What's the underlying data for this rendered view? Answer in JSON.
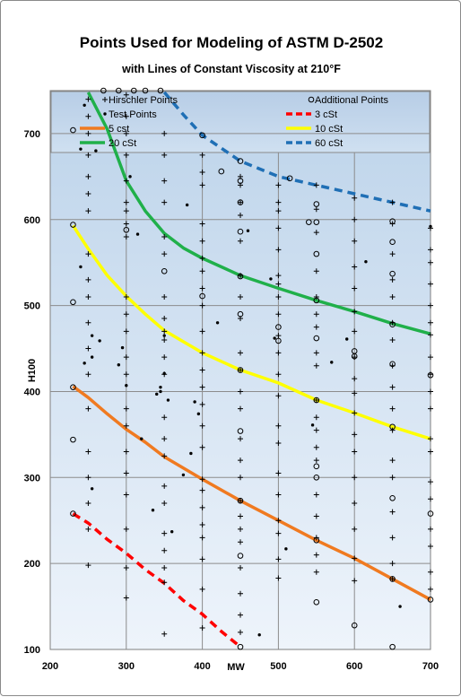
{
  "chart_data": {
    "type": "scatter",
    "title": "Points Used for Modeling of ASTM D-2502",
    "subtitle": "with Lines of Constant Viscosity at 210°F",
    "xlabel": "MW",
    "ylabel": "H100",
    "xlim": [
      200,
      700
    ],
    "ylim": [
      100,
      750
    ],
    "xticks": [
      200,
      300,
      400,
      500,
      600,
      700
    ],
    "yticks": [
      100,
      200,
      300,
      400,
      500,
      600,
      700
    ],
    "grid": true,
    "legend_position": "top",
    "legend": [
      {
        "label": "Hirschler Points",
        "marker": "plus"
      },
      {
        "label": "Additional Points",
        "marker": "circle"
      },
      {
        "label": "Test Points",
        "marker": "dot"
      },
      {
        "label": "3 cSt",
        "style": "dashed",
        "color": "#ff0000"
      },
      {
        "label": "5 cst",
        "style": "solid",
        "color": "#f07a20"
      },
      {
        "label": "10 cSt",
        "style": "solid",
        "color": "#ffff00"
      },
      {
        "label": "20 cSt",
        "style": "solid",
        "color": "#20b04a"
      },
      {
        "label": "60 cSt",
        "style": "dashed",
        "color": "#1f6fb5"
      }
    ],
    "lines": [
      {
        "name": "3 cSt",
        "color": "#ff0000",
        "dashed": true,
        "points": [
          [
            230,
            258
          ],
          [
            250,
            247
          ],
          [
            275,
            228
          ],
          [
            300,
            212
          ],
          [
            325,
            193
          ],
          [
            350,
            177
          ],
          [
            375,
            157
          ],
          [
            400,
            141
          ],
          [
            425,
            121
          ],
          [
            450,
            103
          ]
        ]
      },
      {
        "name": "5 cst",
        "color": "#f07a20",
        "dashed": false,
        "points": [
          [
            230,
            406
          ],
          [
            250,
            393
          ],
          [
            275,
            374
          ],
          [
            300,
            356
          ],
          [
            325,
            341
          ],
          [
            350,
            324
          ],
          [
            375,
            311
          ],
          [
            400,
            298
          ],
          [
            450,
            273
          ],
          [
            500,
            250
          ],
          [
            550,
            227
          ],
          [
            600,
            206
          ],
          [
            650,
            182
          ],
          [
            700,
            158
          ]
        ]
      },
      {
        "name": "10 cSt",
        "color": "#ffff00",
        "dashed": false,
        "points": [
          [
            230,
            593
          ],
          [
            250,
            566
          ],
          [
            275,
            535
          ],
          [
            300,
            511
          ],
          [
            325,
            490
          ],
          [
            350,
            471
          ],
          [
            375,
            458
          ],
          [
            400,
            445
          ],
          [
            450,
            425
          ],
          [
            500,
            410
          ],
          [
            550,
            390
          ],
          [
            600,
            375
          ],
          [
            650,
            359
          ],
          [
            700,
            345
          ]
        ]
      },
      {
        "name": "20 cSt",
        "color": "#20b04a",
        "dashed": false,
        "points": [
          [
            250,
            748
          ],
          [
            275,
            705
          ],
          [
            300,
            645
          ],
          [
            325,
            610
          ],
          [
            350,
            584
          ],
          [
            375,
            567
          ],
          [
            400,
            555
          ],
          [
            450,
            535
          ],
          [
            500,
            520
          ],
          [
            550,
            506
          ],
          [
            600,
            493
          ],
          [
            650,
            479
          ],
          [
            700,
            467
          ]
        ]
      },
      {
        "name": "60 cSt",
        "color": "#1f6fb5",
        "dashed": true,
        "points": [
          [
            350,
            748
          ],
          [
            375,
            722
          ],
          [
            400,
            698
          ],
          [
            450,
            668
          ],
          [
            500,
            650
          ],
          [
            550,
            640
          ],
          [
            600,
            630
          ],
          [
            650,
            620
          ],
          [
            700,
            610
          ]
        ]
      }
    ],
    "hirschler_points": [
      [
        250,
        740
      ],
      [
        250,
        720
      ],
      [
        250,
        700
      ],
      [
        250,
        675
      ],
      [
        250,
        650
      ],
      [
        250,
        630
      ],
      [
        250,
        610
      ],
      [
        250,
        560
      ],
      [
        250,
        530
      ],
      [
        250,
        510
      ],
      [
        250,
        480
      ],
      [
        250,
        450
      ],
      [
        250,
        420
      ],
      [
        250,
        380
      ],
      [
        250,
        330
      ],
      [
        250,
        300
      ],
      [
        250,
        270
      ],
      [
        250,
        240
      ],
      [
        250,
        198
      ],
      [
        300,
        745
      ],
      [
        300,
        720
      ],
      [
        300,
        700
      ],
      [
        300,
        675
      ],
      [
        300,
        645
      ],
      [
        300,
        620
      ],
      [
        300,
        610
      ],
      [
        300,
        595
      ],
      [
        300,
        580
      ],
      [
        300,
        510
      ],
      [
        300,
        490
      ],
      [
        300,
        470
      ],
      [
        300,
        440
      ],
      [
        300,
        420
      ],
      [
        300,
        380
      ],
      [
        300,
        360
      ],
      [
        300,
        330
      ],
      [
        300,
        305
      ],
      [
        300,
        280
      ],
      [
        300,
        240
      ],
      [
        300,
        195
      ],
      [
        300,
        160
      ],
      [
        350,
        700
      ],
      [
        350,
        675
      ],
      [
        350,
        645
      ],
      [
        350,
        620
      ],
      [
        350,
        580
      ],
      [
        350,
        560
      ],
      [
        350,
        510
      ],
      [
        350,
        485
      ],
      [
        350,
        470
      ],
      [
        350,
        460
      ],
      [
        350,
        440
      ],
      [
        350,
        420
      ],
      [
        350,
        370
      ],
      [
        350,
        345
      ],
      [
        350,
        325
      ],
      [
        350,
        290
      ],
      [
        350,
        270
      ],
      [
        350,
        235
      ],
      [
        350,
        215
      ],
      [
        350,
        195
      ],
      [
        350,
        178
      ],
      [
        350,
        118
      ],
      [
        400,
        675
      ],
      [
        400,
        655
      ],
      [
        400,
        640
      ],
      [
        400,
        595
      ],
      [
        400,
        575
      ],
      [
        400,
        555
      ],
      [
        400,
        540
      ],
      [
        400,
        520
      ],
      [
        400,
        500
      ],
      [
        400,
        470
      ],
      [
        400,
        445
      ],
      [
        400,
        425
      ],
      [
        400,
        405
      ],
      [
        400,
        385
      ],
      [
        400,
        360
      ],
      [
        400,
        335
      ],
      [
        400,
        298
      ],
      [
        400,
        285
      ],
      [
        400,
        265
      ],
      [
        400,
        245
      ],
      [
        400,
        230
      ],
      [
        400,
        205
      ],
      [
        400,
        170
      ],
      [
        400,
        125
      ],
      [
        450,
        650
      ],
      [
        450,
        640
      ],
      [
        450,
        620
      ],
      [
        450,
        605
      ],
      [
        450,
        575
      ],
      [
        450,
        535
      ],
      [
        450,
        510
      ],
      [
        450,
        485
      ],
      [
        450,
        445
      ],
      [
        450,
        425
      ],
      [
        450,
        400
      ],
      [
        450,
        380
      ],
      [
        450,
        345
      ],
      [
        450,
        320
      ],
      [
        450,
        300
      ],
      [
        450,
        273
      ],
      [
        450,
        255
      ],
      [
        450,
        240
      ],
      [
        450,
        225
      ],
      [
        450,
        195
      ],
      [
        450,
        165
      ],
      [
        450,
        140
      ],
      [
        450,
        120
      ],
      [
        500,
        640
      ],
      [
        500,
        620
      ],
      [
        500,
        610
      ],
      [
        500,
        590
      ],
      [
        500,
        565
      ],
      [
        500,
        535
      ],
      [
        500,
        525
      ],
      [
        500,
        510
      ],
      [
        500,
        490
      ],
      [
        500,
        465
      ],
      [
        500,
        445
      ],
      [
        500,
        420
      ],
      [
        500,
        395
      ],
      [
        500,
        360
      ],
      [
        500,
        340
      ],
      [
        500,
        305
      ],
      [
        500,
        280
      ],
      [
        500,
        250
      ],
      [
        500,
        235
      ],
      [
        500,
        205
      ],
      [
        500,
        183
      ],
      [
        550,
        640
      ],
      [
        550,
        612
      ],
      [
        550,
        585
      ],
      [
        550,
        540
      ],
      [
        550,
        510
      ],
      [
        550,
        490
      ],
      [
        550,
        475
      ],
      [
        550,
        445
      ],
      [
        550,
        430
      ],
      [
        550,
        390
      ],
      [
        550,
        370
      ],
      [
        550,
        355
      ],
      [
        550,
        335
      ],
      [
        550,
        320
      ],
      [
        550,
        280
      ],
      [
        550,
        255
      ],
      [
        550,
        230
      ],
      [
        550,
        210
      ],
      [
        550,
        190
      ],
      [
        600,
        625
      ],
      [
        600,
        600
      ],
      [
        600,
        575
      ],
      [
        600,
        545
      ],
      [
        600,
        520
      ],
      [
        600,
        493
      ],
      [
        600,
        470
      ],
      [
        600,
        440
      ],
      [
        600,
        415
      ],
      [
        600,
        398
      ],
      [
        600,
        375
      ],
      [
        600,
        350
      ],
      [
        600,
        330
      ],
      [
        600,
        300
      ],
      [
        600,
        270
      ],
      [
        600,
        240
      ],
      [
        600,
        206
      ],
      [
        600,
        180
      ],
      [
        650,
        620
      ],
      [
        650,
        595
      ],
      [
        650,
        560
      ],
      [
        650,
        530
      ],
      [
        650,
        510
      ],
      [
        650,
        480
      ],
      [
        650,
        460
      ],
      [
        650,
        430
      ],
      [
        650,
        405
      ],
      [
        650,
        380
      ],
      [
        650,
        355
      ],
      [
        650,
        320
      ],
      [
        650,
        300
      ],
      [
        650,
        260
      ],
      [
        650,
        230
      ],
      [
        650,
        200
      ],
      [
        650,
        182
      ],
      [
        700,
        590
      ],
      [
        700,
        565
      ],
      [
        700,
        550
      ],
      [
        700,
        525
      ],
      [
        700,
        500
      ],
      [
        700,
        480
      ],
      [
        700,
        466
      ],
      [
        700,
        440
      ],
      [
        700,
        420
      ],
      [
        700,
        400
      ],
      [
        700,
        380
      ],
      [
        700,
        345
      ],
      [
        700,
        330
      ],
      [
        700,
        295
      ],
      [
        700,
        275
      ],
      [
        700,
        240
      ],
      [
        700,
        220
      ],
      [
        700,
        190
      ],
      [
        700,
        170
      ]
    ],
    "additional_points": [
      [
        230,
        704
      ],
      [
        230,
        594
      ],
      [
        230,
        504
      ],
      [
        230,
        405
      ],
      [
        230,
        344
      ],
      [
        230,
        258
      ],
      [
        270,
        750
      ],
      [
        290,
        750
      ],
      [
        310,
        750
      ],
      [
        325,
        750
      ],
      [
        345,
        750
      ],
      [
        300,
        588
      ],
      [
        350,
        540
      ],
      [
        400,
        698
      ],
      [
        400,
        511
      ],
      [
        425,
        656
      ],
      [
        450,
        668
      ],
      [
        450,
        645
      ],
      [
        450,
        620
      ],
      [
        450,
        586
      ],
      [
        450,
        534
      ],
      [
        450,
        490
      ],
      [
        450,
        425
      ],
      [
        450,
        354
      ],
      [
        450,
        273
      ],
      [
        450,
        209
      ],
      [
        450,
        103
      ],
      [
        500,
        475
      ],
      [
        500,
        459
      ],
      [
        515,
        648
      ],
      [
        540,
        597
      ],
      [
        550,
        618
      ],
      [
        550,
        597
      ],
      [
        550,
        560
      ],
      [
        550,
        506
      ],
      [
        550,
        462
      ],
      [
        550,
        390
      ],
      [
        550,
        313
      ],
      [
        550,
        300
      ],
      [
        550,
        227
      ],
      [
        550,
        155
      ],
      [
        600,
        447
      ],
      [
        600,
        441
      ],
      [
        600,
        128
      ],
      [
        650,
        598
      ],
      [
        650,
        574
      ],
      [
        650,
        537
      ],
      [
        650,
        478
      ],
      [
        650,
        432
      ],
      [
        650,
        359
      ],
      [
        650,
        276
      ],
      [
        650,
        182
      ],
      [
        650,
        103
      ],
      [
        700,
        419
      ],
      [
        700,
        258
      ],
      [
        700,
        158
      ]
    ],
    "test_points": [
      [
        240,
        682
      ],
      [
        245,
        733
      ],
      [
        260,
        680
      ],
      [
        240,
        545
      ],
      [
        245,
        433
      ],
      [
        255,
        440
      ],
      [
        255,
        465
      ],
      [
        265,
        459
      ],
      [
        255,
        287
      ],
      [
        290,
        431
      ],
      [
        300,
        407
      ],
      [
        295,
        451
      ],
      [
        305,
        650
      ],
      [
        315,
        583
      ],
      [
        320,
        345
      ],
      [
        335,
        262
      ],
      [
        340,
        397
      ],
      [
        345,
        400
      ],
      [
        345,
        405
      ],
      [
        350,
        421
      ],
      [
        350,
        465
      ],
      [
        355,
        390
      ],
      [
        360,
        237
      ],
      [
        375,
        303
      ],
      [
        380,
        617
      ],
      [
        385,
        328
      ],
      [
        390,
        388
      ],
      [
        395,
        374
      ],
      [
        420,
        480
      ],
      [
        460,
        587
      ],
      [
        475,
        117
      ],
      [
        490,
        531
      ],
      [
        495,
        462
      ],
      [
        510,
        217
      ],
      [
        545,
        361
      ],
      [
        570,
        434
      ],
      [
        590,
        461
      ],
      [
        615,
        551
      ],
      [
        660,
        150
      ],
      [
        700,
        592
      ]
    ]
  }
}
